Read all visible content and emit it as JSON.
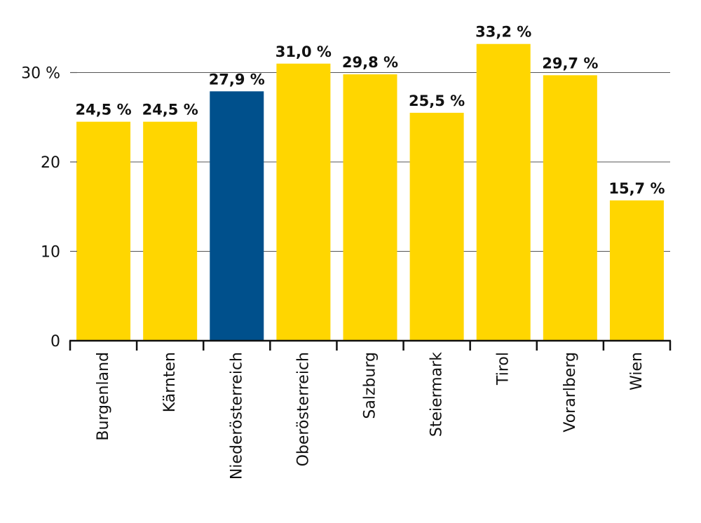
{
  "chart_data": {
    "type": "bar",
    "title": "",
    "xlabel": "",
    "ylabel": "",
    "ylim": [
      0,
      30
    ],
    "grid": true,
    "y_ticks": [
      {
        "value": 0,
        "label": "0"
      },
      {
        "value": 10,
        "label": "10"
      },
      {
        "value": 20,
        "label": "20"
      },
      {
        "value": 30,
        "label": "30 %"
      }
    ],
    "categories": [
      "Burgenland",
      "Kärnten",
      "Niederösterreich",
      "Oberösterreich",
      "Salzburg",
      "Steiermark",
      "Tirol",
      "Vorarlberg",
      "Wien"
    ],
    "values": [
      24.5,
      24.5,
      27.9,
      31.0,
      29.8,
      25.5,
      33.2,
      29.7,
      15.7
    ],
    "value_labels": [
      "24,5 %",
      "24,5 %",
      "27,9 %",
      "31,0 %",
      "29,8 %",
      "25,5 %",
      "33,2 %",
      "29,7 %",
      "15,7 %"
    ],
    "highlight_index": 2,
    "colors": {
      "bar": "#FFD600",
      "highlight": "#00508C",
      "axis": "#111111",
      "grid": "#555555"
    }
  }
}
